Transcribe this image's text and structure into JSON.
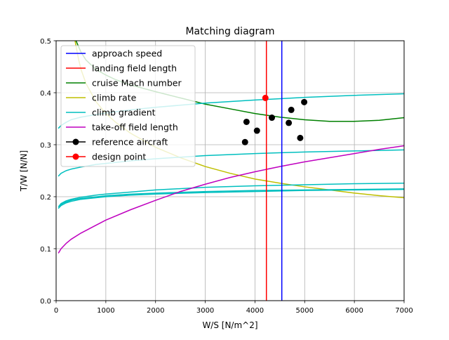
{
  "chart_data": {
    "type": "line",
    "title": "Matching diagram",
    "xlabel": "W/S [N/m^2]",
    "ylabel": "T/W [N/N]",
    "xlim": [
      0,
      7000
    ],
    "ylim": [
      0,
      0.5
    ],
    "xticks": [
      "0",
      "1000",
      "2000",
      "3000",
      "4000",
      "5000",
      "6000",
      "7000"
    ],
    "yticks": [
      "0.0",
      "0.1",
      "0.2",
      "0.3",
      "0.4",
      "0.5"
    ],
    "grid": true,
    "legend_position": "upper-left",
    "legend": [
      {
        "label": "approach speed",
        "color": "#0000ff",
        "style": "line"
      },
      {
        "label": "landing field length",
        "color": "#ff0000",
        "style": "line"
      },
      {
        "label": "cruise Mach number",
        "color": "#008000",
        "style": "line"
      },
      {
        "label": "climb rate",
        "color": "#bfbf00",
        "style": "line"
      },
      {
        "label": "climb gradient",
        "color": "#00bfbf",
        "style": "line"
      },
      {
        "label": "take-off field length",
        "color": "#bf00bf",
        "style": "line"
      },
      {
        "label": "reference aircraft",
        "color": "#000000",
        "style": "marker"
      },
      {
        "label": "design point",
        "color": "#ff0000",
        "style": "marker"
      }
    ],
    "vertical_lines": [
      {
        "name": "approach speed",
        "x": 4540,
        "color": "#0000ff"
      },
      {
        "name": "landing field length",
        "x": 4230,
        "color": "#ff0000"
      }
    ],
    "series": [
      {
        "name": "cruise Mach number",
        "color": "#008000",
        "x": [
          300,
          400,
          500,
          600,
          800,
          1000,
          1200,
          1500,
          2000,
          2500,
          3000,
          3500,
          4000,
          4500,
          5000,
          5500,
          5750,
          6000,
          6500,
          7000
        ],
        "y": [
          0.53,
          0.5,
          0.478,
          0.463,
          0.445,
          0.434,
          0.425,
          0.415,
          0.402,
          0.39,
          0.378,
          0.369,
          0.36,
          0.353,
          0.348,
          0.345,
          0.345,
          0.345,
          0.347,
          0.352
        ]
      },
      {
        "name": "climb rate",
        "color": "#bfbf00",
        "x": [
          380,
          450,
          500,
          600,
          800,
          1000,
          1200,
          1500,
          2000,
          2500,
          3000,
          3500,
          4000,
          4500,
          5000,
          5500,
          6000,
          6500,
          7000
        ],
        "y": [
          0.5,
          0.465,
          0.445,
          0.418,
          0.383,
          0.36,
          0.343,
          0.322,
          0.295,
          0.275,
          0.258,
          0.245,
          0.234,
          0.226,
          0.219,
          0.213,
          0.207,
          0.202,
          0.198
        ]
      },
      {
        "name": "climb gradient 1",
        "color": "#00bfbf",
        "x": [
          50,
          100,
          200,
          300,
          500,
          800,
          1000,
          1500,
          2000,
          3000,
          4000,
          5000,
          6000,
          7000
        ],
        "y": [
          0.332,
          0.337,
          0.343,
          0.348,
          0.353,
          0.358,
          0.361,
          0.367,
          0.372,
          0.38,
          0.386,
          0.391,
          0.395,
          0.398
        ]
      },
      {
        "name": "climb gradient 2",
        "color": "#00bfbf",
        "x": [
          50,
          100,
          200,
          300,
          500,
          800,
          1000,
          1500,
          2000,
          3000,
          4000,
          5000,
          6000,
          7000
        ],
        "y": [
          0.24,
          0.245,
          0.25,
          0.253,
          0.257,
          0.262,
          0.264,
          0.269,
          0.273,
          0.279,
          0.283,
          0.286,
          0.288,
          0.29
        ]
      },
      {
        "name": "climb gradient 3",
        "color": "#00bfbf",
        "x": [
          50,
          100,
          200,
          300,
          500,
          800,
          1000,
          1500,
          2000,
          3000,
          4000,
          5000,
          6000,
          7000
        ],
        "y": [
          0.181,
          0.187,
          0.192,
          0.195,
          0.199,
          0.203,
          0.205,
          0.209,
          0.213,
          0.218,
          0.221,
          0.223,
          0.225,
          0.226
        ]
      },
      {
        "name": "climb gradient 4",
        "color": "#00bfbf",
        "x": [
          50,
          100,
          200,
          300,
          500,
          800,
          1000,
          1500,
          2000,
          3000,
          4000,
          5000,
          6000,
          7000
        ],
        "y": [
          0.178,
          0.183,
          0.188,
          0.191,
          0.195,
          0.198,
          0.2,
          0.203,
          0.205,
          0.208,
          0.21,
          0.212,
          0.213,
          0.214
        ]
      },
      {
        "name": "climb gradient 5",
        "color": "#00bfbf",
        "x": [
          80,
          130,
          230,
          330,
          530,
          830,
          1030,
          1530,
          2030,
          3030,
          4030,
          5030,
          6030,
          7000
        ],
        "y": [
          0.182,
          0.187,
          0.191,
          0.194,
          0.197,
          0.2,
          0.202,
          0.205,
          0.207,
          0.21,
          0.212,
          0.213,
          0.214,
          0.215
        ]
      },
      {
        "name": "take-off field length",
        "color": "#bf00bf",
        "x": [
          50,
          100,
          200,
          300,
          500,
          800,
          1000,
          1500,
          2000,
          2500,
          3000,
          3500,
          4000,
          4500,
          5000,
          5500,
          6000,
          6500,
          7000
        ],
        "y": [
          0.092,
          0.1,
          0.11,
          0.118,
          0.13,
          0.145,
          0.155,
          0.175,
          0.193,
          0.21,
          0.224,
          0.237,
          0.248,
          0.258,
          0.267,
          0.275,
          0.283,
          0.291,
          0.298
        ]
      }
    ],
    "reference_aircraft": [
      {
        "x": 3800,
        "y": 0.305
      },
      {
        "x": 3830,
        "y": 0.344
      },
      {
        "x": 4040,
        "y": 0.327
      },
      {
        "x": 4340,
        "y": 0.352
      },
      {
        "x": 4680,
        "y": 0.342
      },
      {
        "x": 4730,
        "y": 0.367
      },
      {
        "x": 4910,
        "y": 0.313
      },
      {
        "x": 4990,
        "y": 0.382
      }
    ],
    "design_point": {
      "x": 4210,
      "y": 0.39
    }
  }
}
